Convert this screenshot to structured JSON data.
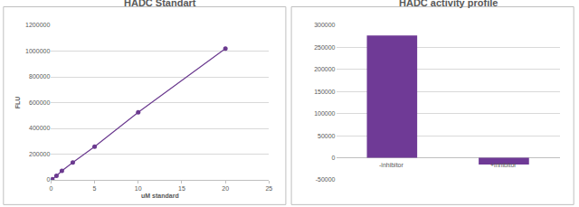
{
  "chart_data": [
    {
      "type": "scatter",
      "title": "HADC Standart",
      "x_label": "uM standard",
      "y_label": "FLU",
      "x": [
        0,
        0.156,
        0.625,
        1.25,
        2.5,
        5,
        10,
        20
      ],
      "values": [
        0,
        5000,
        32000,
        70000,
        135000,
        258000,
        525000,
        1020000
      ],
      "color": "#6b3a8f",
      "marker": "circle",
      "line_style": "solid",
      "xlim": [
        0,
        25
      ],
      "xticks": [
        0,
        5,
        10,
        15,
        20,
        25
      ],
      "ylim": [
        0,
        1200000
      ],
      "yticks": [
        0,
        200000,
        400000,
        600000,
        800000,
        1000000,
        1200000
      ],
      "grid": true
    },
    {
      "type": "bar",
      "title": "HADC activity profile",
      "categories": [
        "-inhibitor",
        "+inhibitor"
      ],
      "values": [
        277000,
        -15000
      ],
      "color": "#6f3a96",
      "ylim": [
        -50000,
        300000
      ],
      "yticks": [
        -50000,
        0,
        50000,
        100000,
        150000,
        200000,
        250000,
        300000
      ],
      "grid": true
    }
  ]
}
